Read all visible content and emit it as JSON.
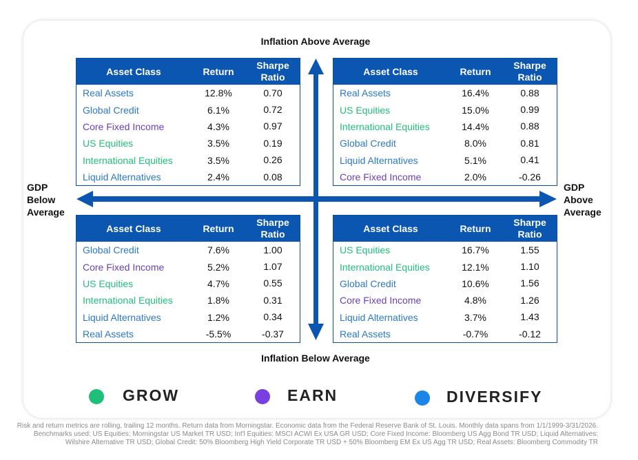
{
  "axes": {
    "top": "Inflation Above Average",
    "bottom": "Inflation Below Average",
    "left": [
      "GDP",
      "Below",
      "Average"
    ],
    "right": [
      "GDP",
      "Above",
      "Average"
    ]
  },
  "columns": {
    "asset_class": "Asset Class",
    "return": "Return",
    "sharpe_line1": "Sharpe",
    "sharpe_line2": "Ratio"
  },
  "colors": {
    "grow": "#1fbf7a",
    "earn": "#6a3fb8",
    "diversify": "#2b78c6",
    "header": "#0b56b0",
    "arrow": "#0b56b0"
  },
  "quadrants": {
    "top_left": [
      {
        "asset": "Real Assets",
        "category": "diversify",
        "return": "12.8%",
        "sharpe": "0.70"
      },
      {
        "asset": "Global Credit",
        "category": "diversify",
        "return": "6.1%",
        "sharpe": "0.72"
      },
      {
        "asset": "Core Fixed Income",
        "category": "earn",
        "return": "4.3%",
        "sharpe": "0.97"
      },
      {
        "asset": "US Equities",
        "category": "grow",
        "return": "3.5%",
        "sharpe": "0.19"
      },
      {
        "asset": "International Equities",
        "category": "grow",
        "return": "3.5%",
        "sharpe": "0.26"
      },
      {
        "asset": "Liquid Alternatives",
        "category": "diversify",
        "return": "2.4%",
        "sharpe": "0.08"
      }
    ],
    "top_right": [
      {
        "asset": "Real Assets",
        "category": "diversify",
        "return": "16.4%",
        "sharpe": "0.88"
      },
      {
        "asset": "US Equities",
        "category": "grow",
        "return": "15.0%",
        "sharpe": "0.99"
      },
      {
        "asset": "International Equities",
        "category": "grow",
        "return": "14.4%",
        "sharpe": "0.88"
      },
      {
        "asset": "Global Credit",
        "category": "diversify",
        "return": "8.0%",
        "sharpe": "0.81"
      },
      {
        "asset": "Liquid Alternatives",
        "category": "diversify",
        "return": "5.1%",
        "sharpe": "0.41"
      },
      {
        "asset": "Core Fixed Income",
        "category": "earn",
        "return": "2.0%",
        "sharpe": "-0.26"
      }
    ],
    "bottom_left": [
      {
        "asset": "Global Credit",
        "category": "diversify",
        "return": "7.6%",
        "sharpe": "1.00"
      },
      {
        "asset": "Core Fixed Income",
        "category": "earn",
        "return": "5.2%",
        "sharpe": "1.07"
      },
      {
        "asset": "US Equities",
        "category": "grow",
        "return": "4.7%",
        "sharpe": "0.55"
      },
      {
        "asset": "International Equities",
        "category": "grow",
        "return": "1.8%",
        "sharpe": "0.31"
      },
      {
        "asset": "Liquid Alternatives",
        "category": "diversify",
        "return": "1.2%",
        "sharpe": "0.34"
      },
      {
        "asset": "Real Assets",
        "category": "diversify",
        "return": "-5.5%",
        "sharpe": "-0.37"
      }
    ],
    "bottom_right": [
      {
        "asset": "US Equities",
        "category": "grow",
        "return": "16.7%",
        "sharpe": "1.55"
      },
      {
        "asset": "International Equities",
        "category": "grow",
        "return": "12.1%",
        "sharpe": "1.10"
      },
      {
        "asset": "Global Credit",
        "category": "diversify",
        "return": "10.6%",
        "sharpe": "1.56"
      },
      {
        "asset": "Core Fixed Income",
        "category": "earn",
        "return": "4.8%",
        "sharpe": "1.26"
      },
      {
        "asset": "Liquid Alternatives",
        "category": "diversify",
        "return": "3.7%",
        "sharpe": "1.43"
      },
      {
        "asset": "Real Assets",
        "category": "diversify",
        "return": "-0.7%",
        "sharpe": "-0.12"
      }
    ]
  },
  "legend": {
    "grow": "GROW",
    "earn": "EARN",
    "diversify": "DIVERSIFY"
  },
  "footnote": [
    "Risk and return metrics are rolling, trailing 12 months. Return data from Morningstar. Economic data from the Federal Reserve Bank of St. Louis. Monthly data spans from 1/1/1999-3/31/2026.",
    "Benchmarks used: US Equities: Morningstar US Market TR USD; Int'l Equities: MSCI ACWI Ex USA GR USD; Core Fixed Income: Bloomberg US Agg Bond TR USD; Liquid Alternatives:",
    "Wilshire Alternative TR USD; Global Credit: 50% Bloomberg High Yield Corporate TR USD + 50% Bloomberg EM Ex US Agg TR USD; Real Assets: Bloomberg Commodity TR"
  ]
}
